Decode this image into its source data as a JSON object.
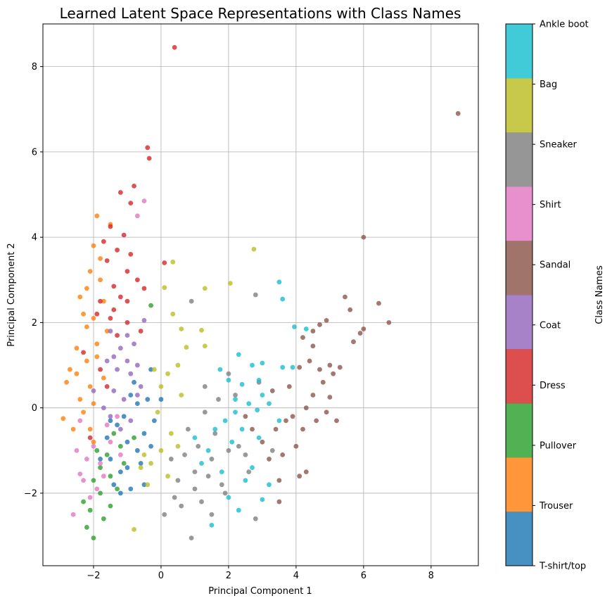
{
  "chart_data": {
    "type": "scatter",
    "title": "Learned Latent Space Representations  with Class Names",
    "xlabel": "Principal Component 1",
    "ylabel": "Principal Component 2",
    "xlim": [
      -3.5,
      9.4
    ],
    "ylim": [
      -3.7,
      9.0
    ],
    "xticks": [
      -2,
      0,
      2,
      4,
      6,
      8
    ],
    "yticks": [
      -2,
      0,
      2,
      4,
      6,
      8
    ],
    "grid": true,
    "colorbar": {
      "label": "Class Names",
      "classes": [
        {
          "name": "T-shirt/top",
          "color": "#1f77b4"
        },
        {
          "name": "Trouser",
          "color": "#ff7f0e"
        },
        {
          "name": "Pullover",
          "color": "#2ca02c"
        },
        {
          "name": "Dress",
          "color": "#d62728"
        },
        {
          "name": "Coat",
          "color": "#9467bd"
        },
        {
          "name": "Sandal",
          "color": "#8c564b"
        },
        {
          "name": "Shirt",
          "color": "#e377c2"
        },
        {
          "name": "Sneaker",
          "color": "#7f7f7f"
        },
        {
          "name": "Bag",
          "color": "#bcbd22"
        },
        {
          "name": "Ankle boot",
          "color": "#17becf"
        }
      ]
    },
    "series": [
      {
        "class": "T-shirt/top",
        "points": [
          [
            -1.2,
            -1.5
          ],
          [
            -1.0,
            -0.8
          ],
          [
            -0.7,
            -1.0
          ],
          [
            -0.5,
            -0.6
          ],
          [
            -1.5,
            -1.2
          ],
          [
            -1.3,
            -0.4
          ],
          [
            -0.9,
            -1.9
          ],
          [
            -0.4,
            0.2
          ],
          [
            -0.6,
            -1.3
          ],
          [
            -1.1,
            -0.2
          ],
          [
            -0.8,
            0.6
          ],
          [
            -0.3,
            0.9
          ],
          [
            -1.4,
            -1.8
          ],
          [
            -0.2,
            -0.3
          ],
          [
            -1.6,
            -0.7
          ],
          [
            -0.7,
            0.1
          ],
          [
            0.0,
            0.2
          ],
          [
            -1.0,
            -1.4
          ],
          [
            -0.5,
            -1.8
          ],
          [
            -1.8,
            -1.2
          ],
          [
            -0.3,
            -0.9
          ],
          [
            -1.2,
            -2.0
          ],
          [
            -0.9,
            0.3
          ],
          [
            -1.5,
            -0.3
          ]
        ]
      },
      {
        "class": "Trouser",
        "points": [
          [
            -2.1,
            0.5
          ],
          [
            -1.9,
            1.5
          ],
          [
            -2.3,
            2.2
          ],
          [
            -1.8,
            3.0
          ],
          [
            -2.0,
            3.8
          ],
          [
            -1.9,
            4.5
          ],
          [
            -2.5,
            0.8
          ],
          [
            -2.6,
            -0.5
          ],
          [
            -2.9,
            -0.25
          ],
          [
            -2.2,
            1.1
          ],
          [
            -1.7,
            2.5
          ],
          [
            -2.4,
            0.2
          ],
          [
            -2.0,
            0.1
          ],
          [
            -1.6,
            1.8
          ],
          [
            -2.2,
            2.8
          ],
          [
            -2.5,
            1.4
          ],
          [
            -1.8,
            3.5
          ],
          [
            -2.3,
            -0.1
          ],
          [
            -2.0,
            -0.8
          ],
          [
            -1.5,
            4.3
          ],
          [
            -2.1,
            3.2
          ],
          [
            -2.7,
            0.9
          ],
          [
            -2.2,
            1.9
          ],
          [
            -1.7,
            0.7
          ],
          [
            -2.4,
            2.6
          ],
          [
            -2.0,
            2.1
          ],
          [
            -2.8,
            0.6
          ],
          [
            -1.9,
            1.2
          ],
          [
            -2.1,
            -0.5
          ]
        ]
      },
      {
        "class": "Pullover",
        "points": [
          [
            -2.1,
            -2.4
          ],
          [
            -1.8,
            -2.0
          ],
          [
            -1.5,
            -1.6
          ],
          [
            -2.0,
            -3.05
          ],
          [
            -1.7,
            -2.6
          ],
          [
            -2.2,
            -2.8
          ],
          [
            -1.3,
            -1.9
          ],
          [
            -1.6,
            -1.1
          ],
          [
            -1.9,
            -1.0
          ],
          [
            -1.4,
            -0.6
          ],
          [
            -2.3,
            -2.2
          ],
          [
            -1.1,
            -1.3
          ],
          [
            -1.8,
            -1.4
          ],
          [
            -1.5,
            -2.3
          ],
          [
            -2.0,
            -1.7
          ],
          [
            -1.2,
            -0.9
          ],
          [
            -0.8,
            -0.7
          ],
          [
            -0.3,
            2.4
          ]
        ]
      },
      {
        "class": "Dress",
        "points": [
          [
            0.4,
            8.45
          ],
          [
            -0.4,
            6.1
          ],
          [
            -0.35,
            5.85
          ],
          [
            -0.8,
            5.2
          ],
          [
            -1.2,
            5.05
          ],
          [
            -0.9,
            4.8
          ],
          [
            -1.5,
            4.25
          ],
          [
            -1.3,
            3.7
          ],
          [
            -1.1,
            4.05
          ],
          [
            -1.6,
            3.45
          ],
          [
            -1.0,
            3.2
          ],
          [
            -0.7,
            3.0
          ],
          [
            -1.4,
            2.85
          ],
          [
            -1.8,
            2.5
          ],
          [
            -1.2,
            2.6
          ],
          [
            -0.5,
            2.8
          ],
          [
            -1.5,
            2.1
          ],
          [
            -1.9,
            2.2
          ],
          [
            -1.0,
            2.0
          ],
          [
            -0.9,
            3.6
          ],
          [
            -1.3,
            1.7
          ],
          [
            0.1,
            3.4
          ],
          [
            -2.3,
            1.3
          ],
          [
            -1.8,
            0.9
          ],
          [
            -1.6,
            0.5
          ],
          [
            -2.1,
            -0.7
          ],
          [
            -1.4,
            2.3
          ],
          [
            -1.0,
            2.5
          ],
          [
            -0.6,
            1.8
          ],
          [
            -1.7,
            3.9
          ]
        ]
      },
      {
        "class": "Coat",
        "points": [
          [
            -1.5,
            1.8
          ],
          [
            -1.2,
            1.4
          ],
          [
            -1.0,
            1.7
          ],
          [
            -0.7,
            1.0
          ],
          [
            -0.5,
            2.05
          ],
          [
            -1.3,
            0.9
          ],
          [
            -1.6,
            1.1
          ],
          [
            -0.9,
            0.8
          ],
          [
            -0.8,
            1.5
          ],
          [
            -1.4,
            0.4
          ],
          [
            -1.1,
            0.2
          ],
          [
            -0.6,
            0.5
          ],
          [
            -1.7,
            0.0
          ],
          [
            -1.2,
            -0.5
          ],
          [
            -1.5,
            -0.2
          ],
          [
            -0.9,
            -0.3
          ],
          [
            -2.0,
            0.4
          ],
          [
            -1.4,
            1.2
          ],
          [
            -1.0,
            1.1
          ],
          [
            -0.7,
            0.3
          ]
        ]
      },
      {
        "class": "Sandal",
        "points": [
          [
            8.8,
            6.9
          ],
          [
            6.0,
            4.0
          ],
          [
            6.75,
            2.0
          ],
          [
            6.45,
            2.45
          ],
          [
            6.0,
            1.85
          ],
          [
            5.6,
            2.3
          ],
          [
            5.45,
            2.6
          ],
          [
            5.7,
            1.55
          ],
          [
            5.9,
            1.75
          ],
          [
            4.9,
            2.05
          ],
          [
            4.7,
            1.95
          ],
          [
            4.5,
            1.8
          ],
          [
            4.2,
            1.65
          ],
          [
            4.5,
            1.45
          ],
          [
            4.4,
            1.1
          ],
          [
            4.1,
            0.95
          ],
          [
            4.7,
            0.9
          ],
          [
            5.0,
            1.0
          ],
          [
            5.3,
            0.95
          ],
          [
            5.1,
            0.8
          ],
          [
            4.8,
            0.6
          ],
          [
            4.5,
            0.3
          ],
          [
            5.0,
            0.25
          ],
          [
            4.3,
            0.0
          ],
          [
            3.9,
            -0.2
          ],
          [
            4.6,
            -0.3
          ],
          [
            5.2,
            -0.3
          ],
          [
            4.2,
            -0.5
          ],
          [
            4.0,
            -0.9
          ],
          [
            3.6,
            -1.1
          ],
          [
            3.2,
            -1.2
          ],
          [
            3.0,
            -0.8
          ],
          [
            3.4,
            -0.5
          ],
          [
            3.7,
            -0.3
          ],
          [
            3.3,
            0.4
          ],
          [
            3.5,
            -1.7
          ],
          [
            4.1,
            -1.6
          ],
          [
            4.3,
            -1.5
          ],
          [
            3.5,
            -2.2
          ],
          [
            2.7,
            -0.5
          ],
          [
            2.5,
            -0.2
          ],
          [
            3.8,
            0.5
          ],
          [
            4.9,
            -0.1
          ]
        ]
      },
      {
        "class": "Shirt",
        "points": [
          [
            -2.6,
            -2.5
          ],
          [
            -2.3,
            -1.7
          ],
          [
            -2.2,
            -1.2
          ],
          [
            -2.0,
            -0.9
          ],
          [
            -1.8,
            -1.3
          ],
          [
            -2.5,
            -1.0
          ],
          [
            -1.9,
            -1.9
          ],
          [
            -1.6,
            -0.4
          ],
          [
            -1.3,
            -0.2
          ],
          [
            -2.4,
            -0.3
          ],
          [
            -2.1,
            -2.1
          ],
          [
            -1.5,
            -0.8
          ],
          [
            -1.7,
            -1.6
          ],
          [
            -1.2,
            -1.1
          ],
          [
            -0.5,
            4.85
          ],
          [
            -0.7,
            4.5
          ],
          [
            -2.4,
            -1.55
          ]
        ]
      },
      {
        "class": "Sneaker",
        "points": [
          [
            0.9,
            2.5
          ],
          [
            2.8,
            2.65
          ],
          [
            0.5,
            -1.7
          ],
          [
            1.0,
            -1.5
          ],
          [
            1.5,
            -1.2
          ],
          [
            1.2,
            -2.2
          ],
          [
            2.0,
            -1.0
          ],
          [
            1.8,
            -1.8
          ],
          [
            0.8,
            -0.5
          ],
          [
            1.3,
            -0.1
          ],
          [
            1.6,
            -0.6
          ],
          [
            2.3,
            -0.9
          ],
          [
            0.9,
            -3.05
          ],
          [
            0.1,
            -2.5
          ],
          [
            0.7,
            -1.1
          ],
          [
            1.1,
            -0.9
          ],
          [
            1.9,
            -2.0
          ],
          [
            2.6,
            -1.5
          ],
          [
            1.4,
            -1.6
          ],
          [
            0.4,
            -2.1
          ],
          [
            0.3,
            -1.2
          ],
          [
            2.2,
            0.3
          ],
          [
            2.9,
            0.6
          ],
          [
            1.7,
            0.2
          ],
          [
            1.0,
            -1.9
          ],
          [
            2.5,
            -1.1
          ],
          [
            0.6,
            -2.3
          ],
          [
            1.3,
            0.5
          ],
          [
            2.8,
            -2.6
          ],
          [
            3.3,
            -1.0
          ],
          [
            2.0,
            0.8
          ],
          [
            1.5,
            -2.5
          ]
        ]
      },
      {
        "class": "Bag",
        "points": [
          [
            2.75,
            3.72
          ],
          [
            0.35,
            3.42
          ],
          [
            0.1,
            2.82
          ],
          [
            2.05,
            2.92
          ],
          [
            1.3,
            2.8
          ],
          [
            0.35,
            2.2
          ],
          [
            0.6,
            1.85
          ],
          [
            1.2,
            1.82
          ],
          [
            1.3,
            1.45
          ],
          [
            0.75,
            1.42
          ],
          [
            0.5,
            1.0
          ],
          [
            0.2,
            0.8
          ],
          [
            0.0,
            0.5
          ],
          [
            0.6,
            0.3
          ],
          [
            -0.1,
            -0.1
          ],
          [
            0.3,
            -0.6
          ],
          [
            0.0,
            -1.0
          ],
          [
            -0.3,
            -1.3
          ],
          [
            -0.6,
            -1.4
          ],
          [
            -0.4,
            -1.8
          ],
          [
            0.2,
            -1.6
          ],
          [
            -0.8,
            -2.85
          ],
          [
            -0.5,
            -1.1
          ],
          [
            0.5,
            -0.9
          ],
          [
            -0.2,
            0.9
          ]
        ]
      },
      {
        "class": "Ankle boot",
        "points": [
          [
            3.5,
            2.95
          ],
          [
            3.6,
            2.55
          ],
          [
            3.95,
            1.9
          ],
          [
            4.3,
            1.85
          ],
          [
            3.6,
            0.95
          ],
          [
            3.9,
            0.95
          ],
          [
            3.0,
            1.05
          ],
          [
            2.7,
            1.0
          ],
          [
            2.3,
            1.25
          ],
          [
            1.75,
            0.9
          ],
          [
            2.0,
            0.65
          ],
          [
            2.4,
            0.55
          ],
          [
            2.9,
            0.65
          ],
          [
            3.0,
            0.3
          ],
          [
            2.6,
            0.1
          ],
          [
            2.2,
            -0.1
          ],
          [
            1.9,
            -0.3
          ],
          [
            1.6,
            -0.5
          ],
          [
            2.1,
            -0.8
          ],
          [
            2.4,
            -0.5
          ],
          [
            2.9,
            -0.7
          ],
          [
            3.2,
            0.1
          ],
          [
            1.4,
            -1.0
          ],
          [
            1.8,
            -1.5
          ],
          [
            2.5,
            -1.7
          ],
          [
            2.0,
            -2.1
          ],
          [
            1.5,
            -2.75
          ],
          [
            2.3,
            -2.4
          ],
          [
            3.0,
            -2.15
          ],
          [
            3.2,
            -1.8
          ],
          [
            2.7,
            -1.4
          ],
          [
            1.2,
            -1.3
          ],
          [
            2.2,
            0.2
          ],
          [
            3.5,
            -0.3
          ],
          [
            1.0,
            -0.7
          ],
          [
            2.85,
            -0.05
          ]
        ]
      }
    ]
  }
}
